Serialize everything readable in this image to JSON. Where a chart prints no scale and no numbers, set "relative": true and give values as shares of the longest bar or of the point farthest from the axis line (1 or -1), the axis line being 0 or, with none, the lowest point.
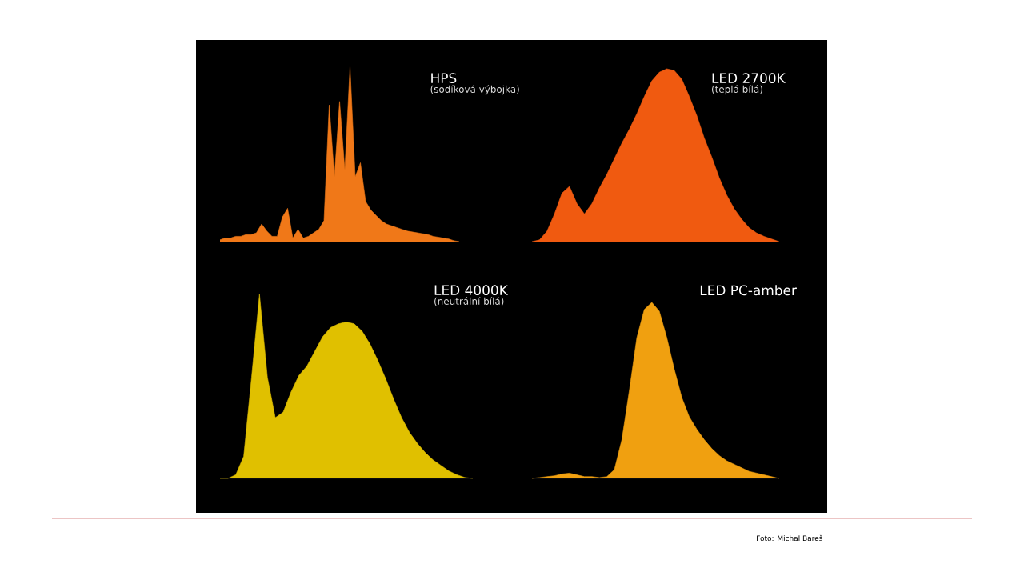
{
  "chart_data": [
    {
      "type": "area",
      "title": "HPS",
      "subtitle": "(sodíková výbojka)",
      "relative": true,
      "color": "#f07818",
      "categories": [
        null,
        null,
        null,
        null,
        null,
        null,
        null,
        null,
        null,
        null,
        null,
        null,
        null,
        null,
        null,
        null,
        null,
        null,
        null,
        null,
        null,
        null,
        null,
        null,
        null,
        null,
        null,
        null,
        null,
        null,
        null,
        null,
        null,
        null,
        null,
        null,
        null,
        null,
        null,
        null,
        null,
        null,
        null,
        null,
        null,
        null,
        null
      ],
      "values": [
        0.01,
        0.02,
        0.02,
        0.03,
        0.03,
        0.04,
        0.04,
        0.05,
        0.1,
        0.06,
        0.03,
        0.03,
        0.14,
        0.19,
        0.02,
        0.07,
        0.02,
        0.03,
        0.05,
        0.07,
        0.12,
        0.78,
        0.37,
        0.8,
        0.41,
        1.0,
        0.37,
        0.45,
        0.23,
        0.18,
        0.15,
        0.12,
        0.1,
        0.09,
        0.08,
        0.07,
        0.06,
        0.055,
        0.05,
        0.045,
        0.04,
        0.03,
        0.025,
        0.02,
        0.015,
        0.005,
        0
      ]
    },
    {
      "type": "area",
      "title": "LED 2700K",
      "subtitle": "(teplá bílá)",
      "relative": true,
      "color": "#f05a10",
      "categories": [
        null,
        null,
        null,
        null,
        null,
        null,
        null,
        null,
        null,
        null,
        null,
        null,
        null,
        null,
        null,
        null,
        null,
        null,
        null,
        null,
        null,
        null,
        null,
        null,
        null,
        null,
        null,
        null,
        null,
        null,
        null,
        null,
        null,
        null
      ],
      "values": [
        0,
        0.01,
        0.06,
        0.16,
        0.28,
        0.32,
        0.22,
        0.16,
        0.22,
        0.31,
        0.39,
        0.48,
        0.57,
        0.65,
        0.74,
        0.84,
        0.93,
        0.98,
        1.0,
        0.99,
        0.94,
        0.84,
        0.73,
        0.6,
        0.49,
        0.37,
        0.27,
        0.19,
        0.13,
        0.08,
        0.05,
        0.03,
        0.015,
        0
      ]
    },
    {
      "type": "area",
      "title": "LED 4000K",
      "subtitle": "(neutrální bílá)",
      "relative": true,
      "color": "#e0c000",
      "categories": [
        null,
        null,
        null,
        null,
        null,
        null,
        null,
        null,
        null,
        null,
        null,
        null,
        null,
        null,
        null,
        null,
        null,
        null,
        null,
        null,
        null,
        null,
        null,
        null,
        null,
        null,
        null,
        null,
        null,
        null,
        null,
        null,
        null
      ],
      "values": [
        0,
        0,
        0.02,
        0.12,
        0.55,
        1.0,
        0.55,
        0.33,
        0.36,
        0.47,
        0.56,
        0.61,
        0.69,
        0.77,
        0.82,
        0.84,
        0.85,
        0.84,
        0.8,
        0.73,
        0.64,
        0.54,
        0.43,
        0.33,
        0.25,
        0.19,
        0.14,
        0.1,
        0.07,
        0.04,
        0.02,
        0.005,
        0
      ]
    },
    {
      "type": "area",
      "title": "LED PC-amber",
      "relative": true,
      "color": "#f0a010",
      "annotations": [
        "Foto: Michal Bareš"
      ],
      "categories": [
        null,
        null,
        null,
        null,
        null,
        null,
        null,
        null,
        null,
        null,
        null,
        null,
        null,
        null,
        null,
        null,
        null,
        null,
        null,
        null,
        null,
        null,
        null,
        null,
        null,
        null,
        null,
        null,
        null,
        null,
        null,
        null,
        null,
        null
      ],
      "values": [
        0,
        0.005,
        0.01,
        0.015,
        0.025,
        0.03,
        0.02,
        0.01,
        0.01,
        0.005,
        0.01,
        0.05,
        0.22,
        0.5,
        0.8,
        0.96,
        1.0,
        0.95,
        0.8,
        0.62,
        0.46,
        0.35,
        0.28,
        0.22,
        0.17,
        0.13,
        0.1,
        0.08,
        0.06,
        0.04,
        0.03,
        0.02,
        0.01,
        0
      ]
    }
  ]
}
